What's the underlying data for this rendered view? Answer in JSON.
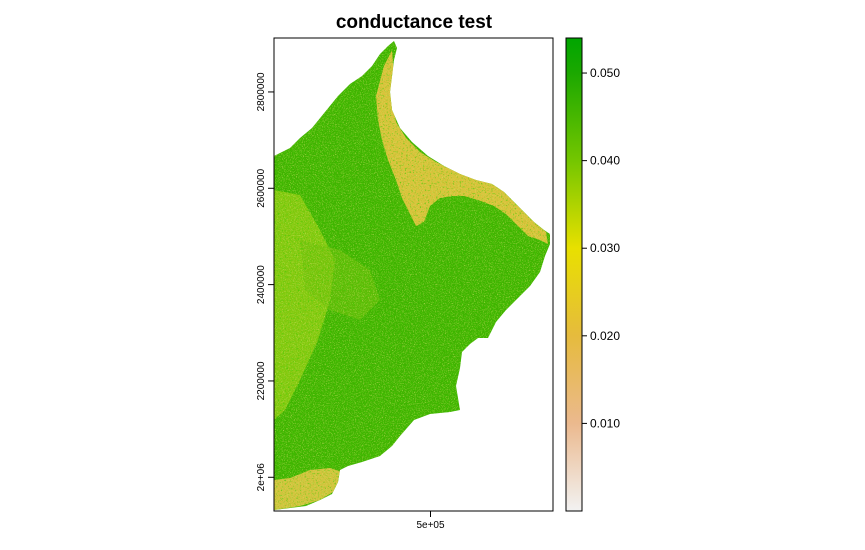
{
  "chart_data": {
    "type": "heatmap",
    "title": "conductance test",
    "xlabel": "",
    "ylabel": "",
    "x_ticks": [
      {
        "value": 500000,
        "label": "5e+05"
      }
    ],
    "y_ticks": [
      {
        "value": 2000000,
        "label": "2e+06"
      },
      {
        "value": 2200000,
        "label": "2200000"
      },
      {
        "value": 2400000,
        "label": "2400000"
      },
      {
        "value": 2600000,
        "label": "2600000"
      },
      {
        "value": 2800000,
        "label": "2800000"
      }
    ],
    "xlim": [
      270000,
      680000
    ],
    "ylim": [
      1930000,
      2912000
    ],
    "grid": false,
    "legend": {
      "placement": "right",
      "range": [
        0,
        0.054
      ],
      "ticks": [
        {
          "value": 0.01,
          "label": "0.010"
        },
        {
          "value": 0.02,
          "label": "0.020"
        },
        {
          "value": 0.03,
          "label": "0.030"
        },
        {
          "value": 0.04,
          "label": "0.040"
        },
        {
          "value": 0.05,
          "label": "0.050"
        }
      ],
      "colors": [
        {
          "value": 0.0,
          "color": "#f2f2f2"
        },
        {
          "value": 0.01,
          "color": "#ebb98e"
        },
        {
          "value": 0.02,
          "color": "#e6bb3d"
        },
        {
          "value": 0.03,
          "color": "#e8e000"
        },
        {
          "value": 0.04,
          "color": "#74c600"
        },
        {
          "value": 0.05,
          "color": "#1ba800"
        },
        {
          "value": 0.054,
          "color": "#00a600"
        }
      ]
    }
  }
}
